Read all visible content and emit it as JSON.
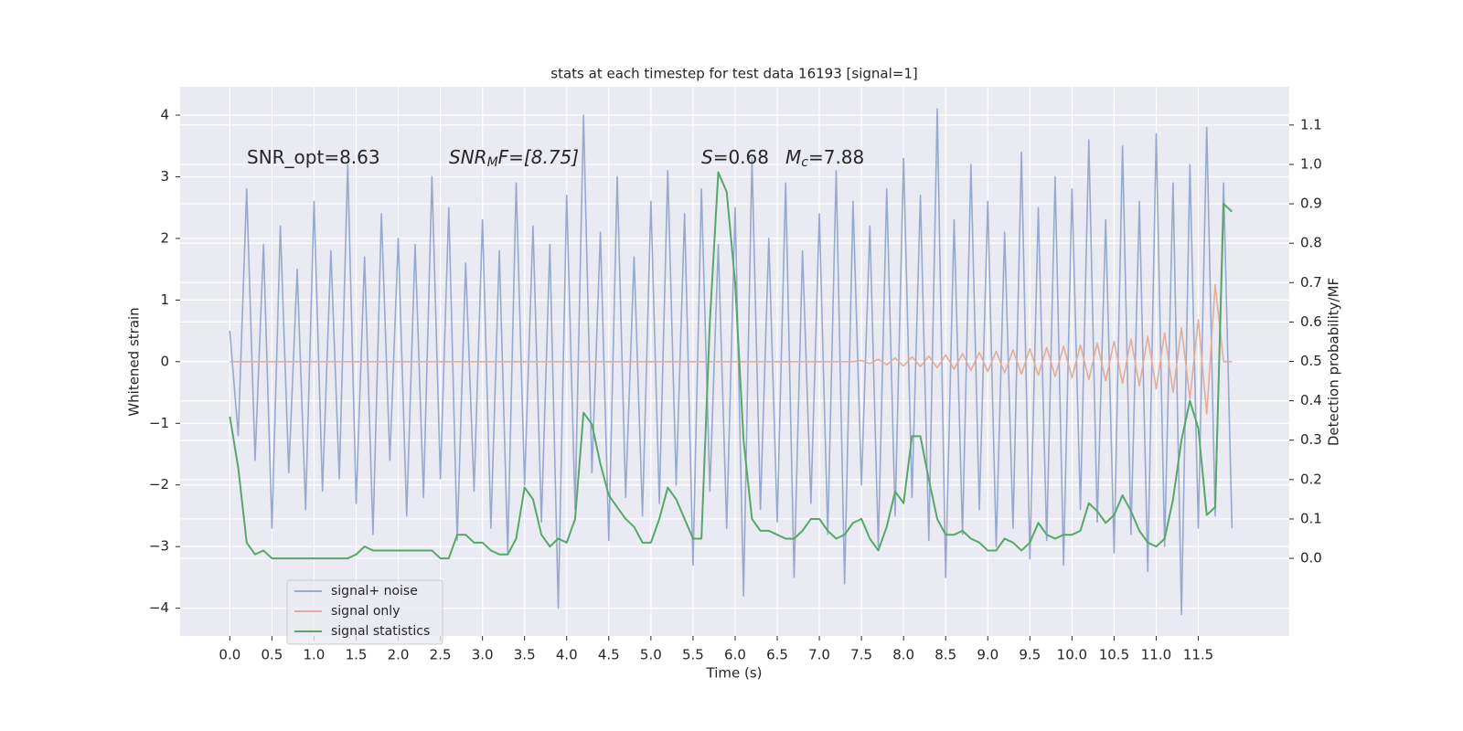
{
  "chart_data": {
    "type": "line",
    "title": "stats at each timestep for test data 16193 [signal=1]",
    "xlabel": "Time (s)",
    "ylabel": "Whitened strain",
    "y2label": "Detection probability/MF",
    "annotations": [
      [
        "SNR_opt=8.63"
      ],
      [
        "SNR",
        "M",
        "F=[8.75]"
      ],
      [
        "S",
        "=0.68"
      ],
      [
        "M",
        "c",
        "=7.88"
      ]
    ],
    "legend": "lower left",
    "grid": true,
    "xlim": [
      -0.59,
      12.58
    ],
    "ylim": [
      -4.45,
      4.46
    ],
    "y2lim": [
      -0.197,
      1.197
    ],
    "xticks": [
      {
        "value": 0,
        "label": "0.0"
      },
      {
        "value": 0.5,
        "label": "0.5"
      },
      {
        "value": 1,
        "label": "1.0"
      },
      {
        "value": 1.5,
        "label": "1.5"
      },
      {
        "value": 2,
        "label": "2.0"
      },
      {
        "value": 2.5,
        "label": "2.5"
      },
      {
        "value": 3,
        "label": "3.0"
      },
      {
        "value": 3.5,
        "label": "3.5"
      },
      {
        "value": 4,
        "label": "4.0"
      },
      {
        "value": 4.5,
        "label": "4.5"
      },
      {
        "value": 5,
        "label": "5.0"
      },
      {
        "value": 5.5,
        "label": "5.5"
      },
      {
        "value": 6,
        "label": "6.0"
      },
      {
        "value": 6.5,
        "label": "6.5"
      },
      {
        "value": 7,
        "label": "7.0"
      },
      {
        "value": 7.5,
        "label": "7.5"
      },
      {
        "value": 8,
        "label": "8.0"
      },
      {
        "value": 8.5,
        "label": "8.5"
      },
      {
        "value": 9,
        "label": "9.0"
      },
      {
        "value": 9.5,
        "label": "9.5"
      },
      {
        "value": 10,
        "label": "10.0"
      },
      {
        "value": 10.5,
        "label": "10.5"
      },
      {
        "value": 11,
        "label": "11.0"
      },
      {
        "value": 11.5,
        "label": "11.5"
      }
    ],
    "yticks": [
      {
        "value": -4,
        "label": "−4"
      },
      {
        "value": -3,
        "label": "−3"
      },
      {
        "value": -2,
        "label": "−2"
      },
      {
        "value": -1,
        "label": "−1"
      },
      0,
      1,
      2,
      3,
      4
    ],
    "y2ticks": [
      {
        "value": 0,
        "label": "0.0"
      },
      {
        "value": 0.1,
        "label": "0.1"
      },
      {
        "value": 0.2,
        "label": "0.2"
      },
      {
        "value": 0.3,
        "label": "0.3"
      },
      {
        "value": 0.4,
        "label": "0.4"
      },
      {
        "value": 0.5,
        "label": "0.5"
      },
      {
        "value": 0.6,
        "label": "0.6"
      },
      {
        "value": 0.7,
        "label": "0.7"
      },
      {
        "value": 0.8,
        "label": "0.8"
      },
      {
        "value": 0.9,
        "label": "0.9"
      },
      {
        "value": 1,
        "label": "1.0"
      },
      {
        "value": 1.1,
        "label": "1.1"
      }
    ],
    "x": [
      0,
      0.1,
      0.2,
      0.3,
      0.4,
      0.5,
      0.6,
      0.7,
      0.8,
      0.9,
      1,
      1.1,
      1.2,
      1.3,
      1.4,
      1.5,
      1.6,
      1.7,
      1.8,
      1.9,
      2,
      2.1,
      2.2,
      2.3,
      2.4,
      2.5,
      2.6,
      2.7,
      2.8,
      2.9,
      3,
      3.1,
      3.2,
      3.3,
      3.4,
      3.5,
      3.6,
      3.7,
      3.8,
      3.9,
      4,
      4.1,
      4.2,
      4.3,
      4.4,
      4.5,
      4.6,
      4.7,
      4.8,
      4.9,
      5,
      5.1,
      5.2,
      5.3,
      5.4,
      5.5,
      5.6,
      5.7,
      5.8,
      5.9,
      6,
      6.1,
      6.2,
      6.3,
      6.4,
      6.5,
      6.6,
      6.7,
      6.8,
      6.9,
      7,
      7.1,
      7.2,
      7.3,
      7.4,
      7.5,
      7.6,
      7.7,
      7.8,
      7.9,
      8,
      8.1,
      8.2,
      8.3,
      8.4,
      8.5,
      8.6,
      8.7,
      8.8,
      8.9,
      9,
      9.1,
      9.2,
      9.3,
      9.4,
      9.5,
      9.6,
      9.7,
      9.8,
      9.9,
      10,
      10.1,
      10.2,
      10.3,
      10.4,
      10.5,
      10.6,
      10.7,
      10.8,
      10.9,
      11,
      11.1,
      11.2,
      11.3,
      11.4,
      11.5,
      11.6,
      11.7,
      11.8,
      11.9
    ],
    "series": [
      {
        "name": "signal+ noise",
        "color": "#98a9cf",
        "values": [
          0.5,
          -1.2,
          2.8,
          -1.6,
          1.9,
          -2.7,
          2.2,
          -1.8,
          1.5,
          -2.4,
          2.6,
          -2.1,
          1.8,
          -1.9,
          3.2,
          -2.3,
          1.7,
          -2.8,
          2.4,
          -1.6,
          2.0,
          -2.5,
          1.9,
          -2.2,
          3.0,
          -1.9,
          2.5,
          -2.9,
          1.6,
          -2.1,
          2.3,
          -2.7,
          1.8,
          -3.1,
          2.9,
          -2.0,
          2.2,
          -2.6,
          1.9,
          -4.0,
          2.7,
          -2.4,
          4.0,
          -1.8,
          2.1,
          -2.9,
          3.0,
          -2.2,
          1.7,
          -2.5,
          2.6,
          -2.3,
          3.1,
          -2.0,
          2.4,
          -3.3,
          2.8,
          -2.1,
          1.9,
          -2.7,
          2.5,
          -3.8,
          3.3,
          -2.4,
          2.0,
          -2.6,
          2.9,
          -3.5,
          1.8,
          -2.3,
          2.4,
          -2.8,
          3.1,
          -3.6,
          2.6,
          -2.0,
          2.2,
          -3.0,
          2.8,
          -2.5,
          3.3,
          -2.2,
          2.7,
          -2.9,
          4.1,
          -3.5,
          2.3,
          -2.8,
          3.2,
          -2.4,
          2.6,
          -3.0,
          2.1,
          -2.7,
          3.4,
          -3.2,
          2.5,
          -2.9,
          3.0,
          -3.3,
          2.8,
          -2.4,
          3.6,
          -2.6,
          2.3,
          -3.1,
          3.5,
          -2.8,
          2.6,
          -3.4,
          3.7,
          -3.0,
          2.9,
          -4.1,
          3.2,
          -2.7,
          3.8,
          -2.5,
          2.9,
          -2.7
        ]
      },
      {
        "name": "signal only",
        "color": "#e3ad98",
        "values": [
          0,
          0,
          0,
          0,
          0,
          0,
          0,
          0,
          0,
          0,
          0,
          0,
          0,
          0,
          0,
          0,
          0,
          0,
          0,
          0,
          0,
          0,
          0,
          0,
          0,
          0,
          0,
          0,
          0,
          0,
          0,
          0,
          0,
          0,
          0,
          0,
          0,
          0,
          0,
          0,
          0,
          0,
          0,
          0,
          0,
          0,
          0,
          0,
          0,
          0,
          0,
          0,
          0,
          0,
          0,
          0,
          0,
          0,
          0,
          0,
          0,
          0,
          0,
          0,
          0,
          0,
          0,
          0,
          0,
          0,
          0,
          0,
          0,
          0,
          0,
          0.02,
          -0.03,
          0.04,
          -0.05,
          0.06,
          -0.07,
          0.08,
          -0.08,
          0.09,
          -0.1,
          0.11,
          -0.12,
          0.13,
          -0.14,
          0.15,
          -0.16,
          0.17,
          -0.18,
          0.19,
          -0.2,
          0.21,
          -0.22,
          0.23,
          -0.24,
          0.25,
          -0.26,
          0.27,
          -0.29,
          0.3,
          -0.31,
          0.33,
          -0.35,
          0.37,
          -0.39,
          0.41,
          -0.44,
          0.47,
          -0.5,
          0.55,
          -0.6,
          0.68,
          -0.85,
          1.25,
          0,
          0
        ]
      },
      {
        "name": "signal statistics",
        "color": "#55a868",
        "axis": "y2",
        "values": [
          0.36,
          0.23,
          0.04,
          0.01,
          0.02,
          0.0,
          0.0,
          0.0,
          0.0,
          0.0,
          0.0,
          0.0,
          0.0,
          0.0,
          0.0,
          0.01,
          0.03,
          0.02,
          0.02,
          0.02,
          0.02,
          0.02,
          0.02,
          0.02,
          0.02,
          0.0,
          0.0,
          0.06,
          0.06,
          0.04,
          0.04,
          0.02,
          0.01,
          0.01,
          0.05,
          0.18,
          0.15,
          0.06,
          0.03,
          0.05,
          0.04,
          0.1,
          0.37,
          0.34,
          0.24,
          0.16,
          0.13,
          0.1,
          0.08,
          0.04,
          0.04,
          0.1,
          0.18,
          0.15,
          0.1,
          0.05,
          0.05,
          0.6,
          0.98,
          0.93,
          0.7,
          0.3,
          0.1,
          0.07,
          0.07,
          0.06,
          0.05,
          0.05,
          0.07,
          0.1,
          0.1,
          0.07,
          0.05,
          0.06,
          0.09,
          0.1,
          0.05,
          0.02,
          0.08,
          0.17,
          0.14,
          0.31,
          0.31,
          0.2,
          0.1,
          0.06,
          0.06,
          0.07,
          0.05,
          0.04,
          0.02,
          0.02,
          0.05,
          0.04,
          0.02,
          0.04,
          0.09,
          0.06,
          0.05,
          0.06,
          0.06,
          0.07,
          0.14,
          0.12,
          0.09,
          0.11,
          0.16,
          0.12,
          0.07,
          0.04,
          0.03,
          0.05,
          0.15,
          0.3,
          0.4,
          0.33,
          0.11,
          0.13,
          0.9,
          0.88
        ]
      }
    ]
  }
}
